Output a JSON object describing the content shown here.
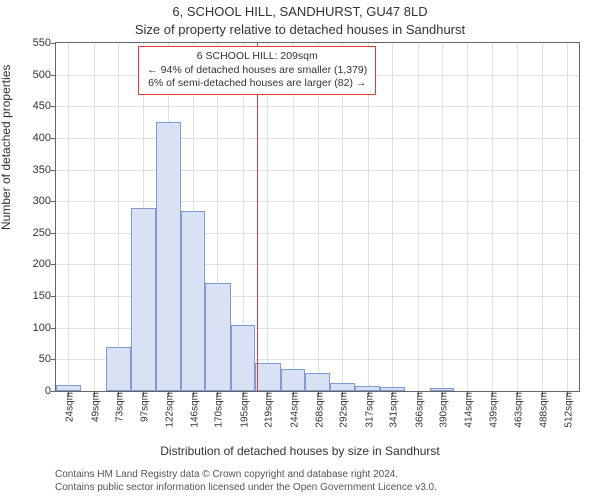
{
  "title": "6, SCHOOL HILL, SANDHURST, GU47 8LD",
  "subtitle": "Size of property relative to detached houses in Sandhurst",
  "ylabel": "Number of detached properties",
  "xlabel": "Distribution of detached houses by size in Sandhurst",
  "credits_line1": "Contains HM Land Registry data © Crown copyright and database right 2024.",
  "credits_line2": "Contains public sector information licensed under the Open Government Licence v3.0.",
  "chart": {
    "type": "histogram",
    "background_color": "#ffffff",
    "grid_color": "#e0e0e0",
    "axis_color": "#666666",
    "bar_fill": "#d9e2f5",
    "bar_stroke": "#7f9bd1",
    "refline_color": "#e53935",
    "refline_x": 209,
    "ylim": [
      0,
      550
    ],
    "ytick_step": 50,
    "xlim": [
      12,
      524
    ],
    "xticks": [
      24,
      49,
      73,
      97,
      122,
      146,
      170,
      195,
      219,
      244,
      268,
      292,
      317,
      341,
      366,
      390,
      414,
      439,
      463,
      488,
      512
    ],
    "x_tick_suffix": "sqm",
    "annotation": {
      "line1": "6 SCHOOL HILL: 209sqm",
      "line2": "← 94% of detached houses are smaller (1,379)",
      "line3": "6% of semi-detached houses are larger (82) →"
    },
    "bars": [
      {
        "x0": 12,
        "x1": 36,
        "v": 10
      },
      {
        "x0": 36,
        "x1": 61,
        "v": 0
      },
      {
        "x0": 61,
        "x1": 85,
        "v": 70
      },
      {
        "x0": 85,
        "x1": 110,
        "v": 290
      },
      {
        "x0": 110,
        "x1": 134,
        "v": 425
      },
      {
        "x0": 134,
        "x1": 158,
        "v": 285
      },
      {
        "x0": 158,
        "x1": 183,
        "v": 170
      },
      {
        "x0": 183,
        "x1": 207,
        "v": 105
      },
      {
        "x0": 207,
        "x1": 232,
        "v": 45
      },
      {
        "x0": 232,
        "x1": 256,
        "v": 35
      },
      {
        "x0": 256,
        "x1": 280,
        "v": 28
      },
      {
        "x0": 280,
        "x1": 305,
        "v": 12
      },
      {
        "x0": 305,
        "x1": 329,
        "v": 8
      },
      {
        "x0": 329,
        "x1": 354,
        "v": 6
      },
      {
        "x0": 354,
        "x1": 378,
        "v": 0
      },
      {
        "x0": 378,
        "x1": 402,
        "v": 5
      },
      {
        "x0": 402,
        "x1": 427,
        "v": 0
      },
      {
        "x0": 427,
        "x1": 451,
        "v": 0
      },
      {
        "x0": 451,
        "x1": 476,
        "v": 0
      },
      {
        "x0": 476,
        "x1": 500,
        "v": 0
      },
      {
        "x0": 500,
        "x1": 524,
        "v": 0
      }
    ]
  }
}
